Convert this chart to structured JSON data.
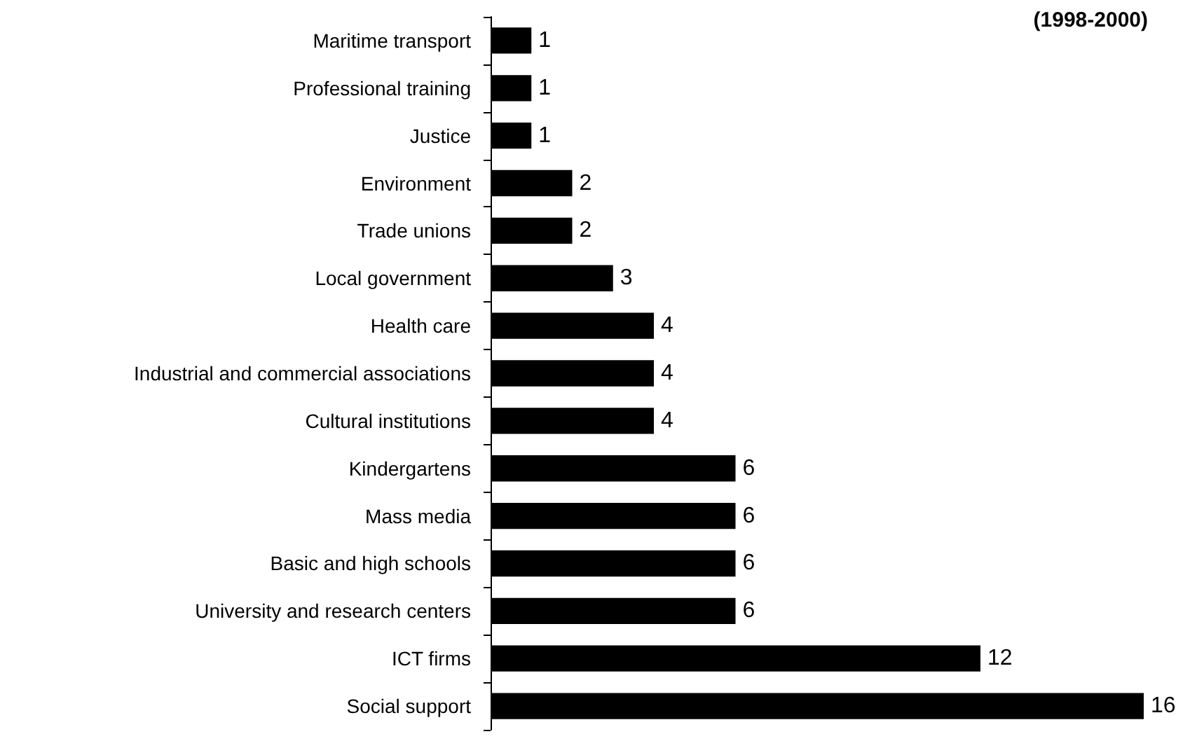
{
  "chart_data": {
    "type": "bar",
    "orientation": "horizontal",
    "title": "(1998-2000)",
    "categories": [
      "Maritime transport",
      "Professional training",
      "Justice",
      "Environment",
      "Trade unions",
      "Local government",
      "Health care",
      "Industrial and commercial associations",
      "Cultural institutions",
      "Kindergartens",
      "Mass media",
      "Basic and high schools",
      "University and research centers",
      "ICT firms",
      "Social support"
    ],
    "values": [
      1,
      1,
      1,
      2,
      2,
      3,
      4,
      4,
      4,
      6,
      6,
      6,
      6,
      12,
      16
    ],
    "color": "#000000",
    "data_labels": true
  }
}
